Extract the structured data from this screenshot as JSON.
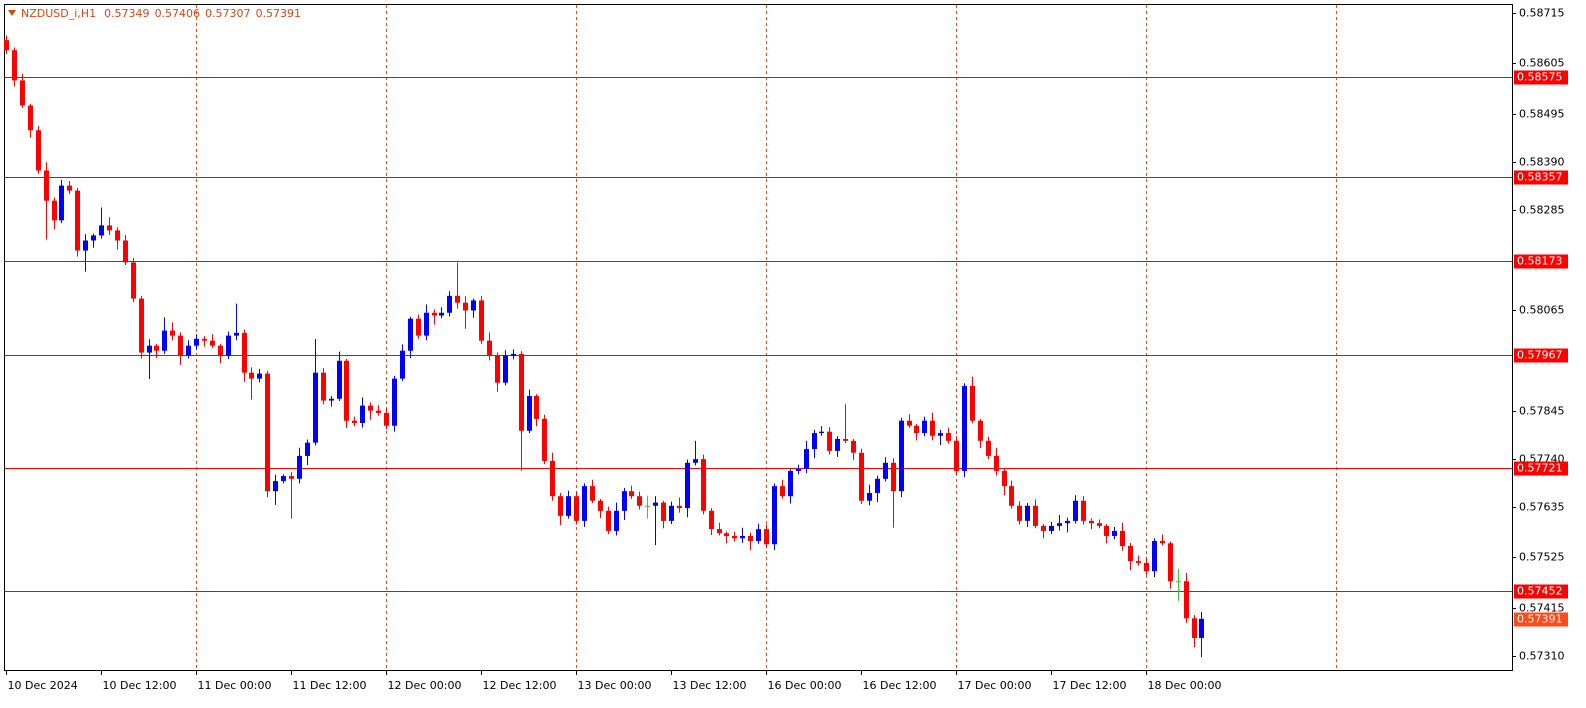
{
  "chart_data": {
    "type": "candlestick",
    "title": "NZDUSD_i,H1",
    "up_color": "#0000ff",
    "down_color": "#ff0000",
    "doji_color": "#32cd32",
    "level_color": "#ff0000",
    "grid_color": "#ff4500",
    "grid": true,
    "ylim": [
      0.57279,
      0.58735
    ],
    "yticks": [
      0.58715,
      0.58605,
      0.58495,
      {
        "value": 0.5839,
        "label": "0.58390"
      },
      0.58285,
      0.58065,
      0.57845,
      {
        "value": 0.5774,
        "label": "0.57740"
      },
      0.57635,
      0.57525,
      0.57415,
      {
        "value": 0.5731,
        "label": "0.57310"
      }
    ],
    "levels": [
      0.58575,
      0.58357,
      0.58173,
      0.57967,
      0.57721,
      0.57452
    ],
    "categories": [
      "10 Dec 2024",
      null,
      null,
      null,
      null,
      null,
      null,
      null,
      null,
      null,
      null,
      null,
      "10 Dec 12:00",
      null,
      null,
      null,
      null,
      null,
      null,
      null,
      null,
      null,
      null,
      null,
      "11 Dec 00:00",
      null,
      null,
      null,
      null,
      null,
      null,
      null,
      null,
      null,
      null,
      null,
      "11 Dec 12:00",
      null,
      null,
      null,
      null,
      null,
      null,
      null,
      null,
      null,
      null,
      null,
      "12 Dec 00:00",
      null,
      null,
      null,
      null,
      null,
      null,
      null,
      null,
      null,
      null,
      null,
      "12 Dec 12:00",
      null,
      null,
      null,
      null,
      null,
      null,
      null,
      null,
      null,
      null,
      null,
      "13 Dec 00:00",
      null,
      null,
      null,
      null,
      null,
      null,
      null,
      null,
      null,
      null,
      null,
      "13 Dec 12:00",
      null,
      null,
      null,
      null,
      null,
      null,
      null,
      null,
      null,
      null,
      null,
      "16 Dec 00:00",
      null,
      null,
      null,
      null,
      null,
      null,
      null,
      null,
      null,
      null,
      null,
      "16 Dec 12:00",
      null,
      null,
      null,
      null,
      null,
      null,
      null,
      null,
      null,
      null,
      null,
      "17 Dec 00:00",
      null,
      null,
      null,
      null,
      null,
      null,
      null,
      null,
      null,
      null,
      null,
      "17 Dec 12:00",
      null,
      null,
      null,
      null,
      null,
      null,
      null,
      null,
      null,
      null,
      null,
      "18 Dec 00:00",
      null,
      null,
      null,
      null,
      null,
      null,
      null
    ],
    "open": [
      0.58656,
      0.58634,
      0.58568,
      0.58513,
      0.58459,
      0.58371,
      0.58305,
      0.58262,
      0.58338,
      0.58327,
      0.58196,
      0.58218,
      0.58229,
      0.58251,
      0.5824,
      0.58218,
      0.5817,
      0.58091,
      0.57973,
      0.57988,
      0.57977,
      0.58021,
      0.5801,
      0.57966,
      0.57988,
      0.58003,
      0.57999,
      0.57988,
      0.57966,
      0.5801,
      0.58016,
      0.57929,
      0.57916,
      0.57927,
      0.5767,
      0.57692,
      0.57703,
      0.57697,
      0.57747,
      0.57776,
      0.57929,
      0.57868,
      0.57872,
      0.57955,
      0.57824,
      0.57819,
      0.57857,
      0.57846,
      0.57841,
      0.57813,
      0.57916,
      0.57977,
      0.58047,
      0.5801,
      0.5806,
      0.58054,
      0.5806,
      0.58097,
      0.58082,
      0.58065,
      0.58087,
      0.57999,
      0.57966,
      0.57907,
      0.57966,
      0.5797,
      0.57802,
      0.57878,
      0.57828,
      0.57736,
      0.57659,
      0.57616,
      0.57659,
      0.57605,
      0.57681,
      0.57649,
      0.57627,
      0.57583,
      0.57627,
      0.5767,
      0.57659,
      0.57638,
      0.57638,
      0.57645,
      0.57605,
      0.57638,
      0.57633,
      0.57732,
      0.5774,
      0.57627,
      0.57587,
      0.57578,
      0.57572,
      0.57567,
      0.57572,
      0.57561,
      0.57587,
      0.57554,
      0.57681,
      0.57659,
      0.57714,
      0.57719,
      0.57762,
      0.57797,
      0.578,
      0.57758,
      0.57784,
      0.5778,
      0.57754,
      0.57649,
      0.57666,
      0.57697,
      0.57732,
      0.5767,
      0.57824,
      0.57813,
      0.57797,
      0.57824,
      0.57791,
      0.57797,
      0.5778,
      0.57714,
      0.579,
      0.57824,
      0.5778,
      0.57747,
      0.57714,
      0.57681,
      0.57638,
      0.57605,
      0.57638,
      0.57594,
      0.57583,
      0.57594,
      0.576,
      0.57605,
      0.57649,
      0.57605,
      0.576,
      0.57594,
      0.57572,
      0.57583,
      0.5755,
      0.57517,
      0.57513,
      0.57495,
      0.57561,
      0.57556,
      0.57473,
      0.57473,
      0.57392,
      0.57349
    ],
    "high": [
      0.58666,
      0.5864,
      0.58582,
      0.58517,
      0.58468,
      0.58389,
      0.58312,
      0.5835,
      0.58348,
      0.58333,
      0.58232,
      0.58233,
      0.5829,
      0.58269,
      0.58247,
      0.5823,
      0.5818,
      0.58097,
      0.58002,
      0.57992,
      0.5805,
      0.58039,
      0.58017,
      0.58,
      0.58013,
      0.58009,
      0.58013,
      0.57992,
      0.58019,
      0.5808,
      0.58023,
      0.57941,
      0.57937,
      0.57933,
      0.57706,
      0.57707,
      0.57712,
      0.57765,
      0.57783,
      0.58003,
      0.57939,
      0.57878,
      0.57975,
      0.57959,
      0.57833,
      0.57875,
      0.57864,
      0.57858,
      0.57851,
      0.57922,
      0.57991,
      0.58051,
      0.58056,
      0.58078,
      0.58067,
      0.58072,
      0.58107,
      0.5817,
      0.58096,
      0.58091,
      0.58096,
      0.58017,
      0.57973,
      0.57978,
      0.5798,
      0.57976,
      0.57892,
      0.57882,
      0.57837,
      0.57754,
      0.57666,
      0.57671,
      0.57669,
      0.57687,
      0.57695,
      0.57653,
      0.57636,
      0.57645,
      0.57677,
      0.57682,
      0.57669,
      0.5766,
      0.57659,
      0.57649,
      0.57647,
      0.57656,
      0.57739,
      0.5778,
      0.5775,
      0.57633,
      0.57601,
      0.57582,
      0.57581,
      0.5759,
      0.57579,
      0.57599,
      0.57597,
      0.57687,
      0.57695,
      0.57718,
      0.57728,
      0.5778,
      0.57804,
      0.57812,
      0.5781,
      0.5779,
      0.5786,
      0.57784,
      0.57763,
      0.57684,
      0.57704,
      0.57744,
      0.57742,
      0.5783,
      0.57838,
      0.57817,
      0.57833,
      0.57842,
      0.57804,
      0.57809,
      0.5779,
      0.57906,
      0.5792,
      0.57828,
      0.57789,
      0.57765,
      0.57721,
      0.57693,
      0.57648,
      0.57644,
      0.57652,
      0.57598,
      0.57603,
      0.57618,
      0.57612,
      0.57661,
      0.57659,
      0.57611,
      0.57608,
      0.57598,
      0.57592,
      0.57601,
      0.57557,
      0.57529,
      0.57523,
      0.57567,
      0.57575,
      0.5756,
      0.575,
      0.57491,
      0.57399,
      0.57406
    ],
    "low": [
      0.58626,
      0.58555,
      0.58508,
      0.58443,
      0.58364,
      0.5822,
      0.58242,
      0.58256,
      0.58319,
      0.58183,
      0.5815,
      0.58202,
      0.58222,
      0.5823,
      0.58198,
      0.58164,
      0.58083,
      0.5796,
      0.57915,
      0.57961,
      0.5797,
      0.58,
      0.57946,
      0.5796,
      0.5798,
      0.57986,
      0.57983,
      0.5795,
      0.57959,
      0.58,
      0.57909,
      0.5787,
      0.57908,
      0.57657,
      0.5764,
      0.57687,
      0.5761,
      0.57687,
      0.57727,
      0.5777,
      0.5786,
      0.57855,
      0.57867,
      0.57808,
      0.57812,
      0.57809,
      0.57826,
      0.57835,
      0.57805,
      0.578,
      0.57911,
      0.57961,
      0.58003,
      0.58,
      0.58034,
      0.58048,
      0.58052,
      0.58069,
      0.58025,
      0.58049,
      0.57992,
      0.57956,
      0.57887,
      0.57901,
      0.57958,
      0.57715,
      0.57797,
      0.57812,
      0.57729,
      0.57649,
      0.57596,
      0.5761,
      0.57597,
      0.57592,
      0.57644,
      0.57611,
      0.57576,
      0.57573,
      0.57607,
      0.57653,
      0.5763,
      0.5761,
      0.57552,
      0.57589,
      0.57598,
      0.57623,
      0.57613,
      0.57726,
      0.57619,
      0.57574,
      0.57573,
      0.57556,
      0.5756,
      0.57557,
      0.57541,
      0.57555,
      0.57546,
      0.57541,
      0.57654,
      0.57643,
      0.57707,
      0.57709,
      0.57742,
      0.57791,
      0.5775,
      0.57745,
      0.57775,
      0.57738,
      0.57642,
      0.57639,
      0.57646,
      0.57691,
      0.5759,
      0.57657,
      0.57808,
      0.57781,
      0.5779,
      0.57781,
      0.57771,
      0.57774,
      0.57706,
      0.57701,
      0.57819,
      0.57764,
      0.5774,
      0.57704,
      0.57661,
      0.57632,
      0.57597,
      0.57592,
      0.57589,
      0.57567,
      0.57576,
      0.57584,
      0.5758,
      0.57599,
      0.57597,
      0.57587,
      0.57589,
      0.57556,
      0.57565,
      0.5754,
      0.57497,
      0.57507,
      0.57487,
      0.57482,
      0.57551,
      0.57457,
      0.5743,
      0.57382,
      0.57329,
      0.57307
    ],
    "close": [
      0.58634,
      0.58568,
      0.58513,
      0.58459,
      0.58371,
      0.58305,
      0.58262,
      0.58338,
      0.58327,
      0.58196,
      0.58218,
      0.58229,
      0.58251,
      0.5824,
      0.58218,
      0.5817,
      0.58091,
      0.57973,
      0.57988,
      0.57977,
      0.58021,
      0.5801,
      0.57966,
      0.57988,
      0.58003,
      0.57999,
      0.57988,
      0.57966,
      0.5801,
      0.58016,
      0.57929,
      0.57916,
      0.57927,
      0.5767,
      0.57692,
      0.57703,
      0.57697,
      0.57747,
      0.57776,
      0.57929,
      0.57868,
      0.57872,
      0.57955,
      0.57824,
      0.57819,
      0.57857,
      0.57846,
      0.57841,
      0.57813,
      0.57916,
      0.57977,
      0.58047,
      0.5801,
      0.5806,
      0.58054,
      0.5806,
      0.58097,
      0.58082,
      0.58065,
      0.58087,
      0.57999,
      0.57966,
      0.57907,
      0.57966,
      0.5797,
      0.57802,
      0.57878,
      0.57828,
      0.57736,
      0.57659,
      0.57616,
      0.57659,
      0.57605,
      0.57681,
      0.57649,
      0.57627,
      0.57583,
      0.57627,
      0.5767,
      0.57659,
      0.57638,
      0.57638,
      0.57645,
      0.57605,
      0.57638,
      0.57633,
      0.57732,
      0.5774,
      0.57627,
      0.57587,
      0.57578,
      0.57572,
      0.57567,
      0.57572,
      0.57561,
      0.57587,
      0.57554,
      0.57681,
      0.57659,
      0.57714,
      0.57719,
      0.57762,
      0.57797,
      0.578,
      0.57758,
      0.57784,
      0.5778,
      0.57754,
      0.57649,
      0.57666,
      0.57697,
      0.57732,
      0.5767,
      0.57824,
      0.57813,
      0.57797,
      0.57824,
      0.57791,
      0.57797,
      0.5778,
      0.57714,
      0.579,
      0.57824,
      0.5778,
      0.57747,
      0.57714,
      0.57681,
      0.57638,
      0.57605,
      0.57638,
      0.57594,
      0.57583,
      0.57594,
      0.576,
      0.57605,
      0.57649,
      0.57605,
      0.576,
      0.57594,
      0.57572,
      0.57583,
      0.5755,
      0.57517,
      0.57513,
      0.57495,
      0.57561,
      0.57556,
      0.57473,
      0.57473,
      0.57392,
      0.57349,
      0.57391
    ]
  }
}
